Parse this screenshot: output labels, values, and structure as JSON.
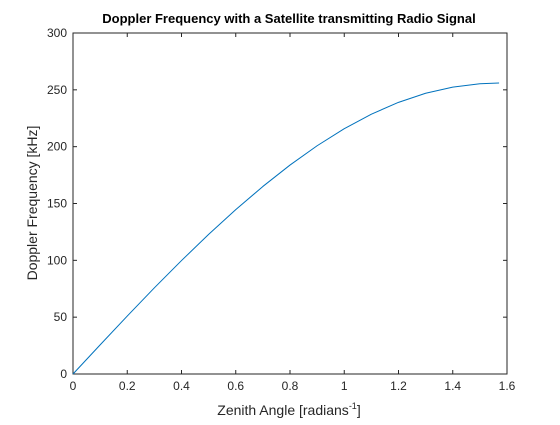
{
  "chart_data": {
    "type": "line",
    "title": "Doppler Frequency with a Satellite transmitting Radio Signal",
    "xlabel": "Zenith Angle [radians",
    "xlabel_sup": "-1",
    "xlabel_close": "]",
    "ylabel": "Doppler Frequency [kHz]",
    "xlim": [
      0,
      1.6
    ],
    "ylim": [
      0,
      300
    ],
    "xticks": [
      0,
      0.2,
      0.4,
      0.6,
      0.8,
      1,
      1.2,
      1.4,
      1.6
    ],
    "xtick_labels": [
      "0",
      "0.2",
      "0.4",
      "0.6",
      "0.8",
      "1",
      "1.2",
      "1.4",
      "1.6"
    ],
    "yticks": [
      0,
      50,
      100,
      150,
      200,
      250,
      300
    ],
    "ytick_labels": [
      "0",
      "50",
      "100",
      "150",
      "200",
      "250",
      "300"
    ],
    "grid": false,
    "legend": "none",
    "series": [
      {
        "color": "#0072bd",
        "x": [
          0,
          0.1,
          0.2,
          0.3,
          0.4,
          0.5,
          0.6,
          0.7,
          0.8,
          0.9,
          1.0,
          1.1,
          1.2,
          1.3,
          1.4,
          1.5,
          1.5708
        ],
        "y": [
          0,
          25.6,
          51.0,
          75.8,
          99.8,
          122.8,
          144.6,
          165.0,
          183.8,
          200.8,
          215.8,
          228.6,
          239.0,
          247.0,
          252.4,
          255.4,
          256.0
        ]
      }
    ]
  }
}
